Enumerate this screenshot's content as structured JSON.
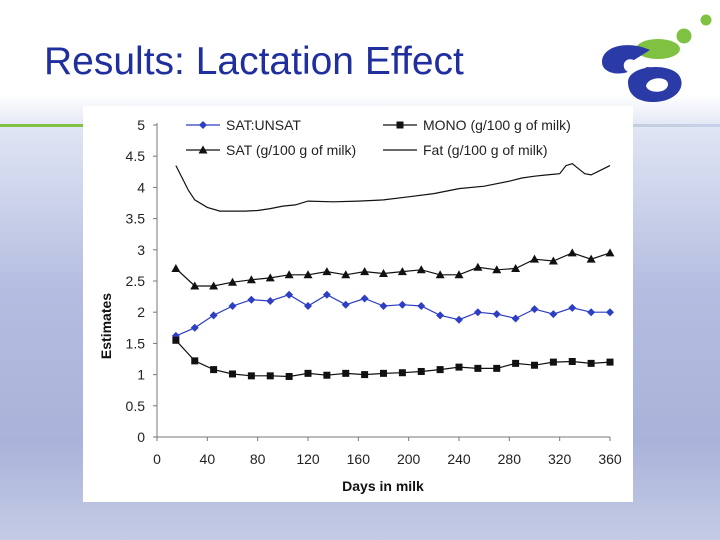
{
  "slide": {
    "title": "Results: Lactation Effect"
  },
  "colors": {
    "title": "#1f2f9e",
    "accent_green": "#7fc241",
    "logo_blue": "#2a3aa6",
    "sat_unsat_series": "#2e3fc4",
    "black_series": "#111111"
  },
  "chart_data": {
    "type": "line",
    "title": "",
    "xlabel": "Days in milk",
    "ylabel": "Estimates",
    "xlim": [
      0,
      360
    ],
    "ylim": [
      0,
      5
    ],
    "xticks": [
      0,
      40,
      80,
      120,
      160,
      200,
      240,
      280,
      320,
      360
    ],
    "yticks": [
      "0",
      "0.5",
      "1",
      "1.5",
      "2",
      "2.5",
      "3",
      "3.5",
      "4",
      "4.5",
      "5"
    ],
    "legend_position": "top",
    "series": [
      {
        "name": "SAT:UNSAT",
        "marker": "diamond",
        "color": "#2e3fc4",
        "x": [
          15,
          30,
          45,
          60,
          75,
          90,
          105,
          120,
          135,
          150,
          165,
          180,
          195,
          210,
          225,
          240,
          255,
          270,
          285,
          300,
          315,
          330,
          345,
          360
        ],
        "values": [
          1.62,
          1.75,
          1.95,
          2.1,
          2.2,
          2.18,
          2.28,
          2.1,
          2.28,
          2.12,
          2.22,
          2.1,
          2.12,
          2.1,
          1.95,
          1.88,
          2.0,
          1.97,
          1.9,
          2.05,
          1.97,
          2.07,
          2.0,
          2.0
        ]
      },
      {
        "name": "MONO (g/100 g of milk)",
        "marker": "square",
        "color": "#111111",
        "x": [
          15,
          30,
          45,
          60,
          75,
          90,
          105,
          120,
          135,
          150,
          165,
          180,
          195,
          210,
          225,
          240,
          255,
          270,
          285,
          300,
          315,
          330,
          345,
          360
        ],
        "values": [
          1.55,
          1.22,
          1.08,
          1.01,
          0.98,
          0.98,
          0.97,
          1.02,
          0.99,
          1.02,
          1.0,
          1.02,
          1.03,
          1.05,
          1.08,
          1.12,
          1.1,
          1.1,
          1.18,
          1.15,
          1.2,
          1.21,
          1.18,
          1.2
        ]
      },
      {
        "name": "SAT (g/100 g of milk)",
        "marker": "triangle",
        "color": "#111111",
        "x": [
          15,
          30,
          45,
          60,
          75,
          90,
          105,
          120,
          135,
          150,
          165,
          180,
          195,
          210,
          225,
          240,
          255,
          270,
          285,
          300,
          315,
          330,
          345,
          360
        ],
        "values": [
          2.7,
          2.42,
          2.42,
          2.48,
          2.52,
          2.55,
          2.6,
          2.6,
          2.65,
          2.6,
          2.65,
          2.62,
          2.65,
          2.68,
          2.6,
          2.6,
          2.72,
          2.68,
          2.7,
          2.85,
          2.82,
          2.95,
          2.85,
          2.95
        ]
      },
      {
        "name": "Fat (g/100 g of milk)",
        "marker": "none",
        "color": "#111111",
        "x": [
          15,
          20,
          25,
          30,
          40,
          50,
          60,
          70,
          80,
          90,
          100,
          110,
          120,
          140,
          160,
          180,
          200,
          220,
          240,
          260,
          280,
          290,
          300,
          310,
          320,
          325,
          330,
          335,
          340,
          345,
          350,
          360
        ],
        "values": [
          4.35,
          4.15,
          3.95,
          3.8,
          3.68,
          3.62,
          3.62,
          3.62,
          3.63,
          3.66,
          3.7,
          3.72,
          3.78,
          3.77,
          3.78,
          3.8,
          3.85,
          3.9,
          3.98,
          4.02,
          4.1,
          4.15,
          4.18,
          4.2,
          4.22,
          4.35,
          4.38,
          4.3,
          4.22,
          4.2,
          4.25,
          4.35
        ]
      }
    ]
  }
}
